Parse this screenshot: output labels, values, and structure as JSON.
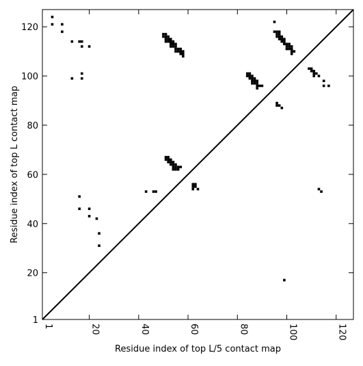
{
  "chart_data": {
    "type": "scatter",
    "title": "",
    "xlabel": "Residue index of top L/5 contact map",
    "ylabel": "Residue index of top L contact map",
    "xlim": [
      1,
      127
    ],
    "ylim": [
      1,
      127
    ],
    "x_ticks": [
      1,
      20,
      40,
      60,
      80,
      100,
      120
    ],
    "y_ticks": [
      1,
      20,
      40,
      60,
      80,
      100,
      120
    ],
    "x_tick_labels": [
      "1",
      "20",
      "40",
      "60",
      "80",
      "100",
      "120"
    ],
    "y_tick_labels": [
      "1",
      "20",
      "40",
      "60",
      "80",
      "100",
      "120"
    ],
    "x_tick_rotation": 90,
    "diagonal": true,
    "grid": false,
    "marker": "square",
    "color": "#000000",
    "series": [
      {
        "region": "upper-left (top L contacts)",
        "points": [
          [
            5,
            124
          ],
          [
            5,
            121
          ],
          [
            9,
            121
          ],
          [
            9,
            118
          ],
          [
            13,
            114
          ],
          [
            16,
            114
          ],
          [
            17,
            114
          ],
          [
            17,
            112
          ],
          [
            20,
            112
          ],
          [
            13,
            99
          ],
          [
            17,
            101
          ],
          [
            17,
            99
          ],
          [
            50,
            117
          ],
          [
            51,
            117
          ],
          [
            50,
            116
          ],
          [
            51,
            116
          ],
          [
            52,
            116
          ],
          [
            51,
            115
          ],
          [
            52,
            115
          ],
          [
            53,
            115
          ],
          [
            51,
            114
          ],
          [
            52,
            114
          ],
          [
            53,
            114
          ],
          [
            54,
            114
          ],
          [
            53,
            113
          ],
          [
            54,
            113
          ],
          [
            55,
            113
          ],
          [
            53,
            112
          ],
          [
            54,
            112
          ],
          [
            55,
            112
          ],
          [
            55,
            111
          ],
          [
            56,
            111
          ],
          [
            57,
            111
          ],
          [
            55,
            110
          ],
          [
            56,
            110
          ],
          [
            57,
            110
          ],
          [
            58,
            110
          ],
          [
            57,
            109
          ],
          [
            58,
            109
          ],
          [
            58,
            108
          ],
          [
            84,
            101
          ],
          [
            85,
            101
          ],
          [
            84,
            100
          ],
          [
            85,
            100
          ],
          [
            86,
            100
          ],
          [
            85,
            99
          ],
          [
            86,
            99
          ],
          [
            87,
            99
          ],
          [
            86,
            98
          ],
          [
            87,
            98
          ],
          [
            88,
            98
          ],
          [
            86,
            97
          ],
          [
            87,
            97
          ],
          [
            88,
            97
          ],
          [
            88,
            96
          ],
          [
            89,
            96
          ],
          [
            90,
            96
          ],
          [
            88,
            95
          ],
          [
            95,
            122
          ],
          [
            95,
            118
          ],
          [
            96,
            118
          ],
          [
            97,
            118
          ],
          [
            96,
            117
          ],
          [
            97,
            117
          ],
          [
            96,
            116
          ],
          [
            97,
            116
          ],
          [
            98,
            116
          ],
          [
            97,
            115
          ],
          [
            98,
            115
          ],
          [
            99,
            115
          ],
          [
            98,
            114
          ],
          [
            99,
            114
          ],
          [
            99,
            113
          ],
          [
            100,
            113
          ],
          [
            101,
            113
          ],
          [
            100,
            112
          ],
          [
            101,
            112
          ],
          [
            102,
            112
          ],
          [
            100,
            111
          ],
          [
            101,
            111
          ],
          [
            102,
            111
          ],
          [
            102,
            110
          ],
          [
            103,
            110
          ],
          [
            102,
            109
          ],
          [
            109,
            103
          ],
          [
            110,
            103
          ],
          [
            110,
            102
          ],
          [
            111,
            102
          ],
          [
            111,
            101
          ],
          [
            112,
            101
          ],
          [
            111,
            100
          ],
          [
            113,
            100
          ],
          [
            115,
            98
          ],
          [
            115,
            96
          ],
          [
            117,
            96
          ],
          [
            96,
            89
          ],
          [
            96,
            88
          ],
          [
            97,
            88
          ],
          [
            98,
            87
          ]
        ]
      },
      {
        "region": "lower-right (top L/5 contacts)",
        "points": [
          [
            16,
            51
          ],
          [
            16,
            46
          ],
          [
            20,
            46
          ],
          [
            20,
            43
          ],
          [
            23,
            42
          ],
          [
            24,
            36
          ],
          [
            24,
            31
          ],
          [
            43,
            53
          ],
          [
            46,
            53
          ],
          [
            47,
            53
          ],
          [
            51,
            67
          ],
          [
            52,
            67
          ],
          [
            51,
            66
          ],
          [
            52,
            66
          ],
          [
            53,
            66
          ],
          [
            52,
            65
          ],
          [
            53,
            65
          ],
          [
            54,
            65
          ],
          [
            53,
            64
          ],
          [
            54,
            64
          ],
          [
            55,
            64
          ],
          [
            54,
            63
          ],
          [
            55,
            63
          ],
          [
            56,
            63
          ],
          [
            57,
            63
          ],
          [
            54,
            62
          ],
          [
            55,
            62
          ],
          [
            56,
            62
          ],
          [
            62,
            56
          ],
          [
            63,
            56
          ],
          [
            62,
            55
          ],
          [
            63,
            55
          ],
          [
            62,
            54
          ],
          [
            64,
            54
          ],
          [
            113,
            54
          ],
          [
            114,
            53
          ],
          [
            99,
            17
          ]
        ]
      }
    ]
  }
}
